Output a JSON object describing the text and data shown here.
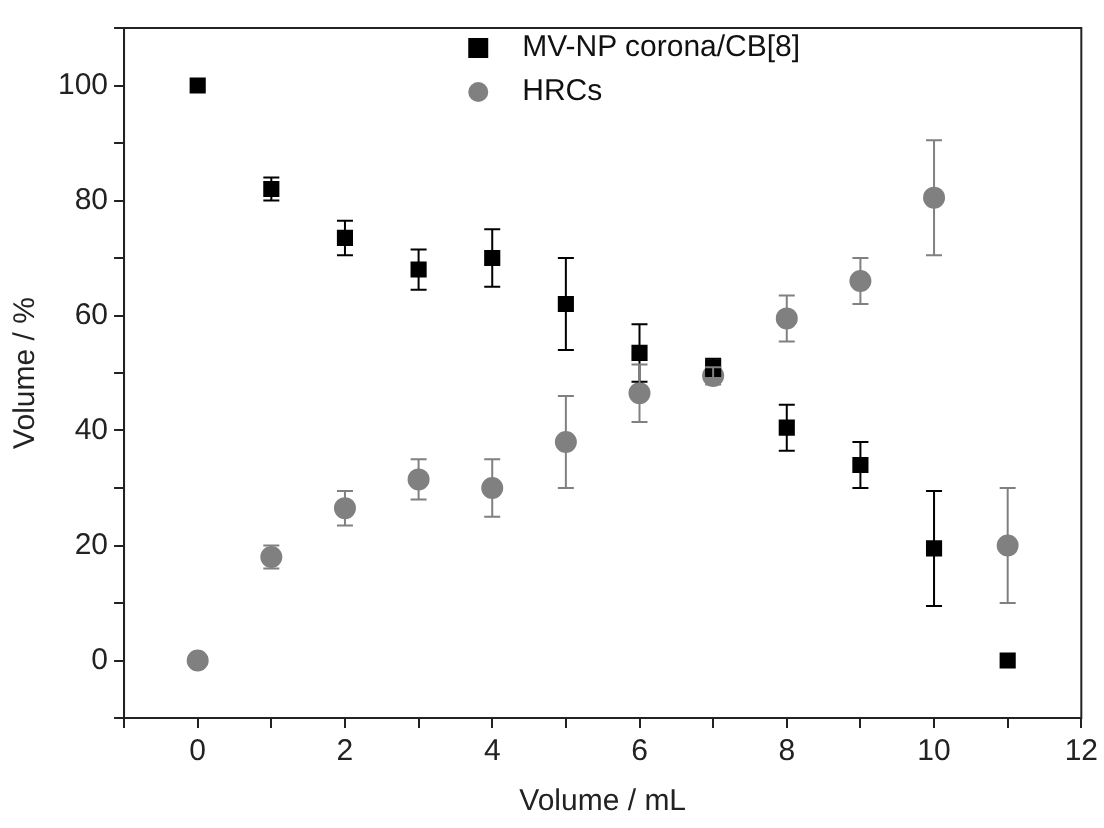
{
  "chart_data": {
    "type": "scatter",
    "xlabel": "Volume / mL",
    "ylabel": "Volume / %",
    "x": [
      0,
      1,
      2,
      3,
      4,
      5,
      6,
      7,
      8,
      9,
      10,
      11
    ],
    "series": [
      {
        "name": "MV-NP corona/CB[8]",
        "color": "#000000",
        "marker": "square",
        "values": [
          100,
          82,
          73.5,
          68,
          70,
          62,
          53.5,
          51,
          40.5,
          34,
          19.5,
          0
        ],
        "errors": [
          null,
          2,
          3,
          3.5,
          5,
          8,
          5,
          1.5,
          4,
          4,
          10,
          null
        ]
      },
      {
        "name": "HRCs",
        "color": "#808080",
        "marker": "circle",
        "values": [
          0,
          18,
          26.5,
          31.5,
          30,
          38,
          46.5,
          49.5,
          59.5,
          66,
          80.5,
          20
        ],
        "errors": [
          null,
          2,
          3,
          3.5,
          5,
          8,
          5,
          1.5,
          4,
          4,
          10,
          10
        ]
      }
    ],
    "xlim": [
      -1,
      12
    ],
    "xticks": [
      {
        "value": -1,
        "label": null
      },
      0,
      {
        "value": 1,
        "label": null
      },
      2,
      {
        "value": 3,
        "label": null
      },
      4,
      {
        "value": 5,
        "label": null
      },
      6,
      {
        "value": 7,
        "label": null
      },
      8,
      {
        "value": 9,
        "label": null
      },
      10,
      {
        "value": 11,
        "label": null
      },
      12
    ],
    "ylim": [
      -10,
      110
    ],
    "yticks": [
      {
        "value": -10,
        "label": null
      },
      0,
      {
        "value": 10,
        "label": null
      },
      20,
      {
        "value": 30,
        "label": null
      },
      40,
      {
        "value": 50,
        "label": null
      },
      60,
      {
        "value": 70,
        "label": null
      },
      80,
      {
        "value": 90,
        "label": null
      },
      100,
      {
        "value": 110,
        "label": null
      }
    ],
    "grid": false,
    "legend": "top right"
  }
}
